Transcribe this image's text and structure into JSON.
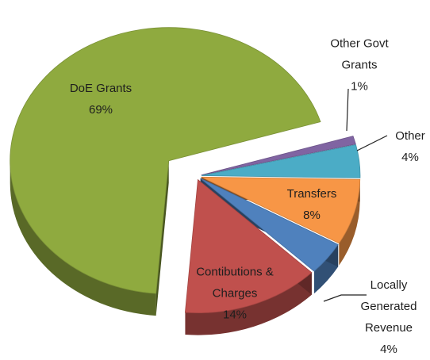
{
  "chart_data": {
    "type": "pie",
    "categories": [
      "Other Govt Grants",
      "Other",
      "Transfers",
      "Locally Generated Revenue",
      "Contibutions & Charges",
      "DoE Grants"
    ],
    "values": [
      1,
      4,
      8,
      4,
      14,
      69
    ],
    "value_labels": [
      "1%",
      "4%",
      "8%",
      "4%",
      "14%",
      "69%"
    ],
    "colors": [
      "#8064a2",
      "#4bacc6",
      "#f79646",
      "#4f81bd",
      "#c0504d",
      "#8faa3f"
    ]
  }
}
